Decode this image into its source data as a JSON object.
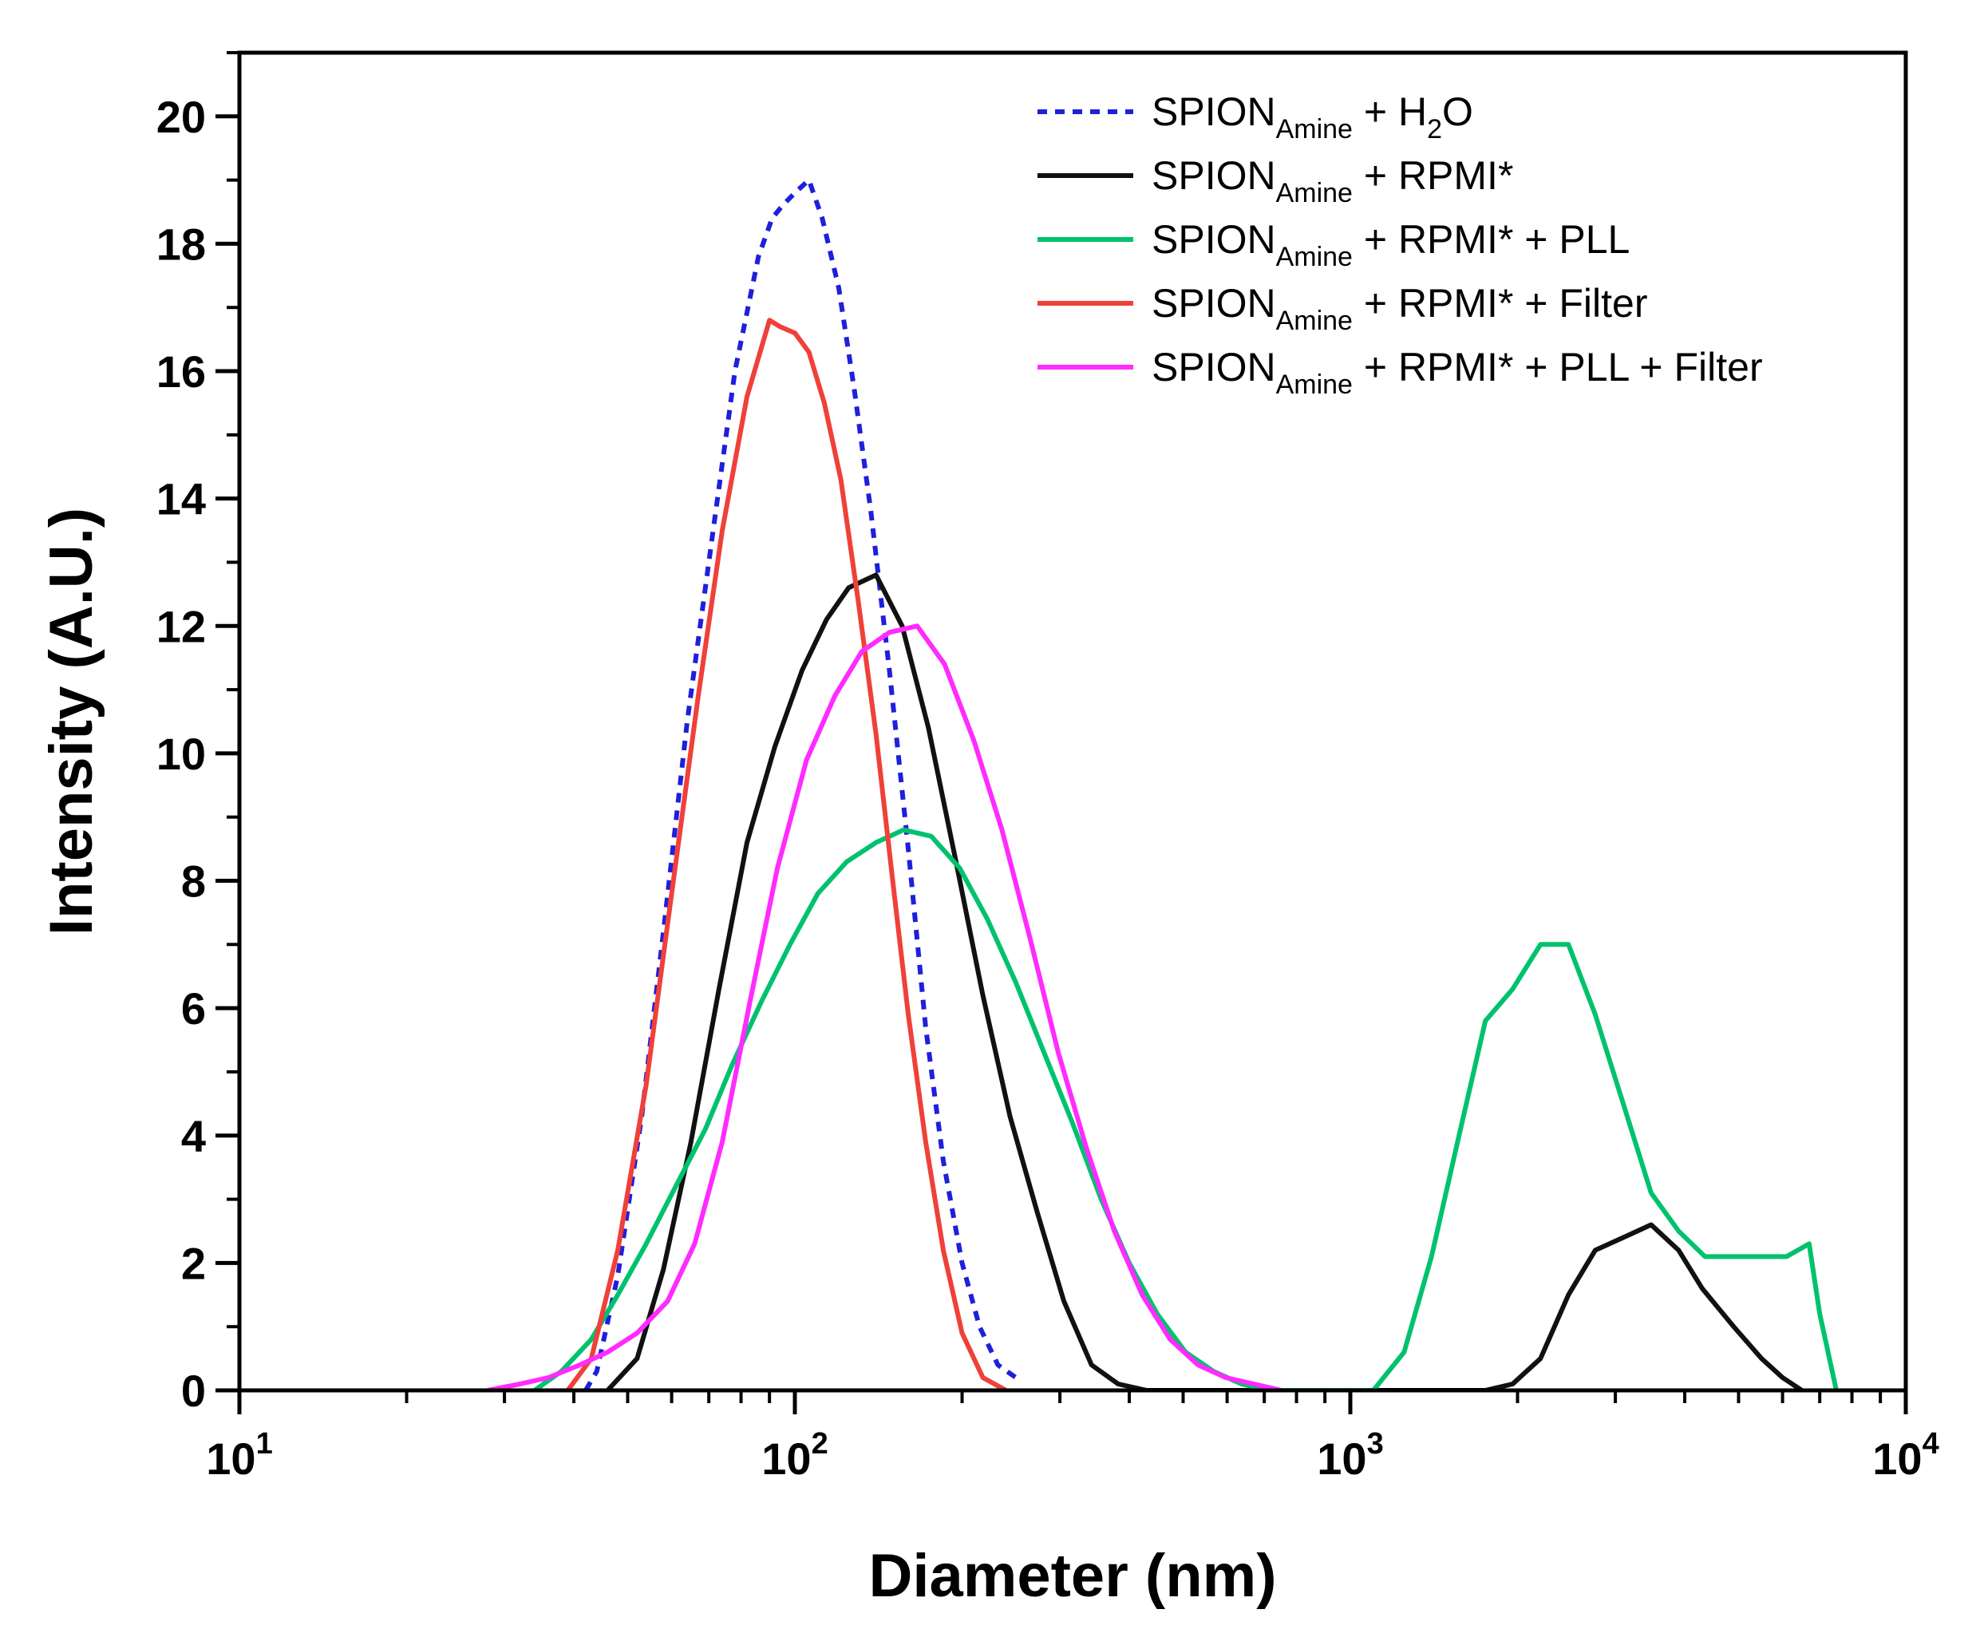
{
  "chart_data": {
    "type": "line",
    "title": "",
    "xlabel": "Diameter (nm)",
    "ylabel": "Intensity (A.U.)",
    "xscale": "log",
    "xlim": [
      10,
      10000
    ],
    "ylim": [
      0,
      21
    ],
    "x_ticks": [
      {
        "value": 10,
        "base": "10",
        "exp": "1"
      },
      {
        "value": 100,
        "base": "10",
        "exp": "2"
      },
      {
        "value": 1000,
        "base": "10",
        "exp": "3"
      },
      {
        "value": 10000,
        "base": "10",
        "exp": "4"
      }
    ],
    "y_ticks": [
      {
        "value": 0,
        "label": "0"
      },
      {
        "value": 2,
        "label": "2"
      },
      {
        "value": 4,
        "label": "4"
      },
      {
        "value": 6,
        "label": "6"
      },
      {
        "value": 8,
        "label": "8"
      },
      {
        "value": 10,
        "label": "10"
      },
      {
        "value": 12,
        "label": "12"
      },
      {
        "value": 14,
        "label": "14"
      },
      {
        "value": 16,
        "label": "16"
      },
      {
        "value": 18,
        "label": "18"
      },
      {
        "value": 20,
        "label": "20"
      }
    ],
    "legend_position": "top-right",
    "series": [
      {
        "name": "SPION_Amine + H2O",
        "legend_main": "SPION",
        "legend_sub": "Amine",
        "legend_rest": " + H",
        "legend_sub2": "2",
        "legend_rest2": "O",
        "color": "#1f1fdc",
        "dashed": true,
        "x": [
          42,
          44,
          48,
          53,
          58,
          64,
          71,
          78,
          86,
          91,
          95,
          100,
          106,
          112,
          120,
          128,
          137,
          148,
          160,
          172,
          185,
          200,
          215,
          232,
          250
        ],
        "y": [
          0.0,
          0.3,
          1.8,
          4.3,
          7.2,
          10.5,
          13.4,
          16.0,
          17.8,
          18.4,
          18.6,
          18.8,
          19.0,
          18.4,
          17.3,
          15.7,
          13.8,
          11.3,
          8.5,
          5.7,
          3.6,
          2.0,
          1.0,
          0.4,
          0.2
        ]
      },
      {
        "name": "SPION_Amine + RPMI*",
        "legend_main": "SPION",
        "legend_sub": "Amine",
        "legend_rest": " + RPMI*",
        "legend_sub2": "",
        "legend_rest2": "",
        "color": "#111111",
        "dashed": false,
        "x": [
          46,
          52,
          58,
          65,
          73,
          82,
          92,
          103,
          114,
          125,
          140,
          156,
          174,
          195,
          218,
          244,
          273,
          305,
          342,
          382,
          430,
          460,
          1650,
          1750,
          1960,
          2200,
          2470,
          2760,
          3100,
          3480,
          3900,
          4300,
          4900,
          5500,
          6000,
          6500
        ],
        "y": [
          0.0,
          0.5,
          1.9,
          3.9,
          6.3,
          8.6,
          10.1,
          11.3,
          12.1,
          12.6,
          12.8,
          12.0,
          10.4,
          8.3,
          6.2,
          4.3,
          2.8,
          1.4,
          0.4,
          0.1,
          0.0,
          0.0,
          0.0,
          0.0,
          0.1,
          0.5,
          1.5,
          2.2,
          2.4,
          2.6,
          2.2,
          1.6,
          1.0,
          0.5,
          0.2,
          0.0
        ]
      },
      {
        "name": "SPION_Amine + RPMI* + PLL",
        "legend_main": "SPION",
        "legend_sub": "Amine",
        "legend_rest": " + RPMI* + PLL",
        "legend_sub2": "",
        "legend_rest2": "",
        "color": "#00c26e",
        "dashed": false,
        "x": [
          34,
          38,
          43,
          48,
          54,
          61,
          69,
          77,
          87,
          98,
          110,
          124,
          140,
          157,
          176,
          198,
          222,
          250,
          281,
          316,
          356,
          400,
          449,
          505,
          567,
          637,
          716,
          805,
          1100,
          1250,
          1400,
          1560,
          1750,
          1960,
          2200,
          2470,
          2760,
          3100,
          3480,
          3900,
          4350,
          4900,
          5500,
          6100,
          6700,
          7000,
          7500
        ],
        "y": [
          0.0,
          0.3,
          0.8,
          1.5,
          2.3,
          3.2,
          4.1,
          5.1,
          6.1,
          7.0,
          7.8,
          8.3,
          8.6,
          8.8,
          8.7,
          8.2,
          7.4,
          6.4,
          5.3,
          4.2,
          3.0,
          2.0,
          1.2,
          0.6,
          0.3,
          0.1,
          0.0,
          0.0,
          0.0,
          0.6,
          2.1,
          3.9,
          5.8,
          6.3,
          7.0,
          7.0,
          5.9,
          4.5,
          3.1,
          2.5,
          2.1,
          2.1,
          2.1,
          2.1,
          2.3,
          1.2,
          0.0
        ]
      },
      {
        "name": "SPION_Amine + RPMI* + Filter",
        "legend_main": "SPION",
        "legend_sub": "Amine",
        "legend_rest": " + RPMI* + Filter",
        "legend_sub2": "",
        "legend_rest2": "",
        "color": "#f0403a",
        "dashed": false,
        "x": [
          39,
          43,
          48,
          54,
          60,
          67,
          74,
          82,
          90,
          94,
          100,
          106,
          113,
          121,
          130,
          140,
          150,
          160,
          172,
          185,
          200,
          218,
          240
        ],
        "y": [
          0.0,
          0.5,
          2.2,
          4.8,
          7.8,
          10.9,
          13.5,
          15.6,
          16.8,
          16.7,
          16.6,
          16.3,
          15.5,
          14.3,
          12.4,
          10.3,
          8.0,
          5.9,
          3.9,
          2.2,
          0.9,
          0.2,
          0.0
        ]
      },
      {
        "name": "SPION_Amine + RPMI* + PLL + Filter",
        "legend_main": "SPION",
        "legend_sub": "Amine",
        "legend_rest": " + RPMI* + PLL + Filter",
        "legend_sub2": "",
        "legend_rest2": "",
        "color": "#ff2bff",
        "dashed": false,
        "x": [
          28,
          32,
          36,
          41,
          46,
          52,
          59,
          66,
          74,
          83,
          93,
          105,
          118,
          132,
          148,
          166,
          186,
          210,
          236,
          265,
          298,
          335,
          376,
          422,
          474,
          532,
          597,
          670,
          752
        ],
        "y": [
          0.0,
          0.1,
          0.2,
          0.4,
          0.6,
          0.9,
          1.4,
          2.3,
          3.9,
          6.1,
          8.2,
          9.9,
          10.9,
          11.6,
          11.9,
          12.0,
          11.4,
          10.2,
          8.8,
          7.1,
          5.3,
          3.8,
          2.5,
          1.5,
          0.8,
          0.4,
          0.2,
          0.1,
          0.0
        ]
      }
    ]
  }
}
